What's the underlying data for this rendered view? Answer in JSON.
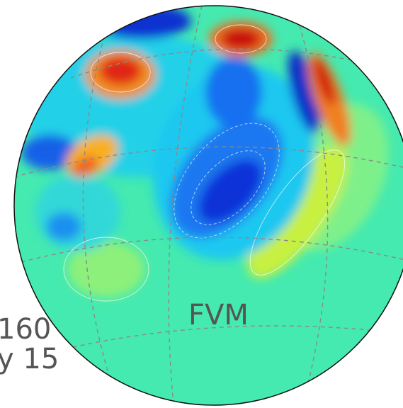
{
  "labels": {
    "model": "FVM",
    "line1": "160",
    "line2": "y 15"
  }
}
